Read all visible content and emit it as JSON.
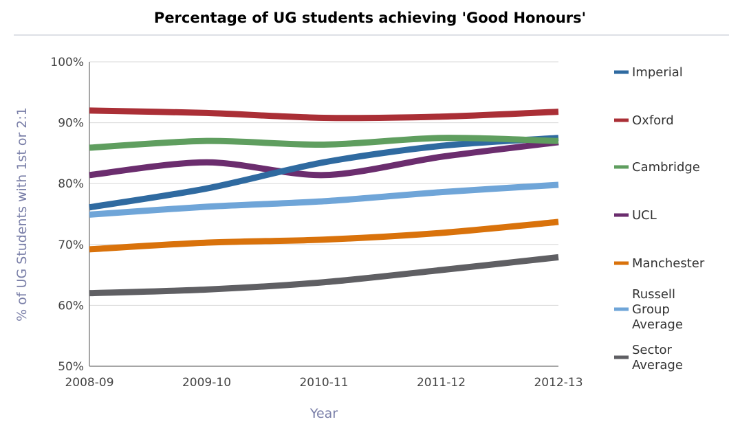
{
  "chart_data": {
    "type": "line",
    "title": "Percentage of UG students achieving 'Good Honours'",
    "xlabel": "Year",
    "ylabel": "% of UG Students with 1st or 2:1",
    "categories": [
      "2008-09",
      "2009-10",
      "2010-11",
      "2011-12",
      "2012-13"
    ],
    "ylim": [
      50,
      100
    ],
    "yticks": [
      "50%",
      "60%",
      "70%",
      "80%",
      "90%",
      "100%"
    ],
    "grid": true,
    "legend_position": "right",
    "series": [
      {
        "name": "Imperial",
        "color": "#2f6aa0",
        "values": [
          76.1,
          79.2,
          83.5,
          86.2,
          87.5
        ]
      },
      {
        "name": "Oxford",
        "color": "#aa2f36",
        "values": [
          92.0,
          91.6,
          90.8,
          91.0,
          91.8
        ]
      },
      {
        "name": "Cambridge",
        "color": "#5f9e5f",
        "values": [
          85.9,
          87.0,
          86.4,
          87.5,
          87.0
        ]
      },
      {
        "name": "UCL",
        "color": "#6b2d6e",
        "values": [
          81.4,
          83.5,
          81.4,
          84.4,
          86.8
        ]
      },
      {
        "name": "Manchester",
        "color": "#d9720b",
        "values": [
          69.2,
          70.3,
          70.8,
          71.9,
          73.7
        ]
      },
      {
        "name": "Russell Group Average",
        "legend_lines": [
          "Russell",
          "Group",
          "Average"
        ],
        "color": "#6fa5d8",
        "values": [
          74.9,
          76.2,
          77.1,
          78.6,
          79.8
        ]
      },
      {
        "name": "Sector Average",
        "legend_lines": [
          "Sector",
          "Average"
        ],
        "color": "#5f5f63",
        "values": [
          62.0,
          62.6,
          63.8,
          65.8,
          67.9
        ]
      }
    ]
  }
}
